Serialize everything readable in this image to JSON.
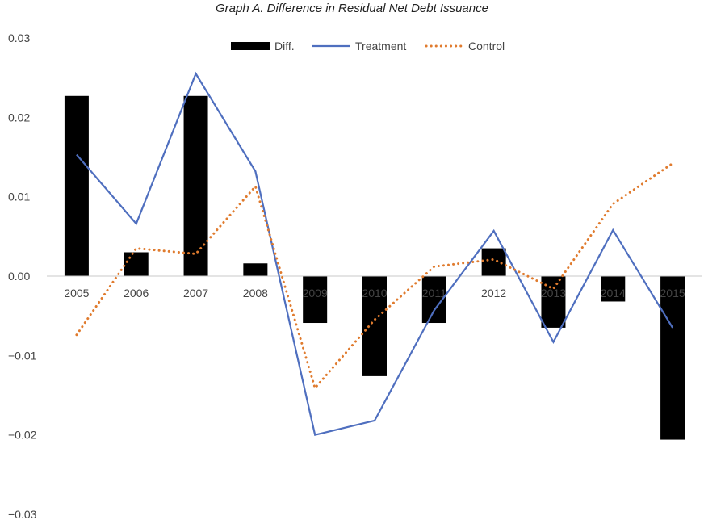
{
  "chart_data": {
    "type": "bar",
    "title": "Graph A. Difference in Residual Net Debt Issuance",
    "categories": [
      "2005",
      "2006",
      "2007",
      "2008",
      "2009",
      "2010",
      "2011",
      "2012",
      "2013",
      "2014",
      "2015"
    ],
    "ylim": [
      -0.03,
      0.03
    ],
    "yticks": [
      "0.03",
      "0.02",
      "0.01",
      "0.00",
      "−0.01",
      "−0.02",
      "−0.03"
    ],
    "ytick_values": [
      0.03,
      0.02,
      0.01,
      0.0,
      -0.01,
      -0.02,
      -0.03
    ],
    "grid": false,
    "legend_position": "top",
    "series": [
      {
        "name": "Diff.",
        "kind": "bar",
        "color": "#000000",
        "values": [
          0.0227,
          0.003,
          0.0227,
          0.0016,
          -0.0059,
          -0.0126,
          -0.0059,
          0.0035,
          -0.0065,
          -0.0032,
          -0.0206
        ]
      },
      {
        "name": "Treatment",
        "kind": "line",
        "color": "#4f6fbf",
        "values": [
          0.0153,
          0.0066,
          0.0255,
          0.0132,
          -0.02,
          -0.0182,
          -0.0043,
          0.0057,
          -0.0083,
          0.0058,
          -0.0065
        ]
      },
      {
        "name": "Control",
        "kind": "dotted-line",
        "color": "#e07b2e",
        "values": [
          -0.0074,
          0.0035,
          0.0028,
          0.0113,
          -0.0141,
          -0.0055,
          0.0012,
          0.0021,
          -0.0016,
          0.0091,
          0.0142
        ]
      }
    ]
  }
}
